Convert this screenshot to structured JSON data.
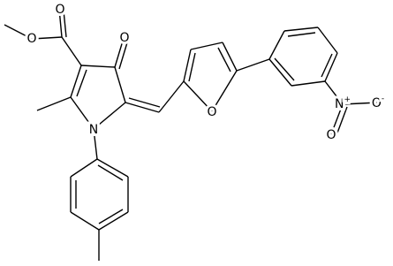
{
  "atoms": [
    {
      "label": "O"
    },
    {
      "label": "O"
    },
    {
      "label": "O"
    },
    {
      "label": "N"
    },
    {
      "label": "O"
    },
    {
      "label": "N",
      "charge": "+"
    },
    {
      "label": "O",
      "charge": "-"
    },
    {
      "label": "O"
    }
  ]
}
